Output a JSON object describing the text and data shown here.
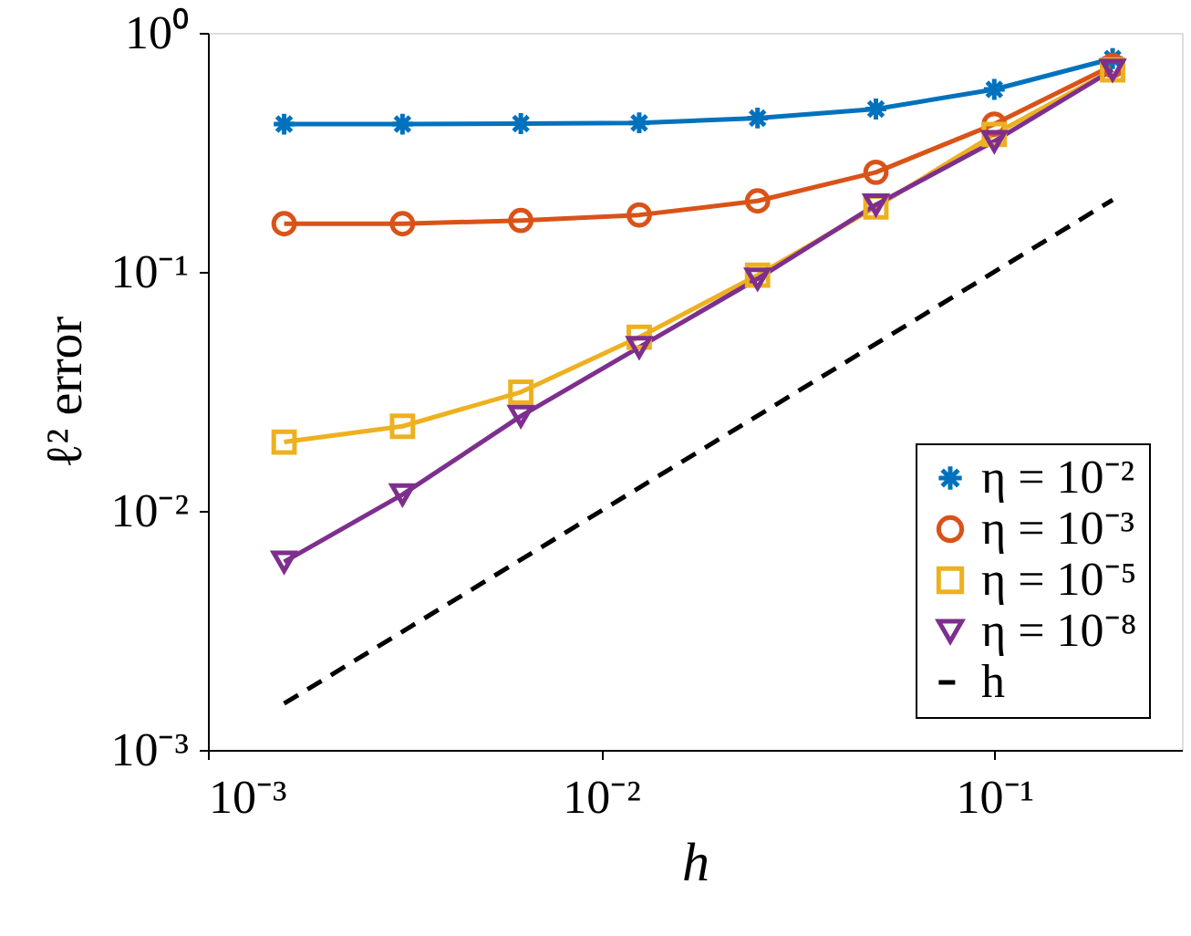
{
  "chart_data": {
    "type": "line",
    "xlabel": "h",
    "ylabel": "ℓ² error",
    "log": "xy",
    "grid": false,
    "legend": "bottom right",
    "xlim": [
      0.001,
      0.3
    ],
    "xticks": [
      {
        "value": 0.001,
        "label": "10⁻³"
      },
      {
        "value": 0.01,
        "label": "10⁻²"
      },
      {
        "value": 0.1,
        "label": "10⁻¹"
      }
    ],
    "ylim": [
      0.001,
      1
    ],
    "yticks": [
      {
        "value": 0.001,
        "label": "10⁻³"
      },
      {
        "value": 0.01,
        "label": "10⁻²"
      },
      {
        "value": 0.1,
        "label": "10⁻¹"
      },
      {
        "value": 1,
        "label": "10⁰"
      }
    ],
    "x": [
      0.0015625,
      0.003125,
      0.00625,
      0.0125,
      0.025,
      0.05,
      0.1,
      0.2
    ],
    "series": [
      {
        "name": "η = 10⁻²",
        "color": "#0072bd",
        "marker": "cross",
        "values": [
          0.415,
          0.415,
          0.417,
          0.42,
          0.44,
          0.48,
          0.58,
          0.78
        ]
      },
      {
        "name": "η = 10⁻³",
        "color": "#d95319",
        "marker": "circle",
        "values": [
          0.159,
          0.159,
          0.164,
          0.173,
          0.198,
          0.261,
          0.415,
          0.73
        ]
      },
      {
        "name": "η = 10⁻⁵",
        "color": "#edb120",
        "marker": "square",
        "values": [
          0.0194,
          0.0226,
          0.0314,
          0.0533,
          0.0968,
          0.187,
          0.376,
          0.7
        ]
      },
      {
        "name": "η = 10⁻⁸",
        "color": "#7e2f8e",
        "marker": "triangle",
        "values": [
          0.00612,
          0.0117,
          0.0249,
          0.0484,
          0.0936,
          0.191,
          0.352,
          0.7
        ]
      },
      {
        "name": "h",
        "color": "#000000",
        "marker": "none",
        "line_style": "dashed",
        "x": [
          0.0015625,
          0.2
        ],
        "values": [
          0.0015625,
          0.2
        ]
      }
    ]
  }
}
